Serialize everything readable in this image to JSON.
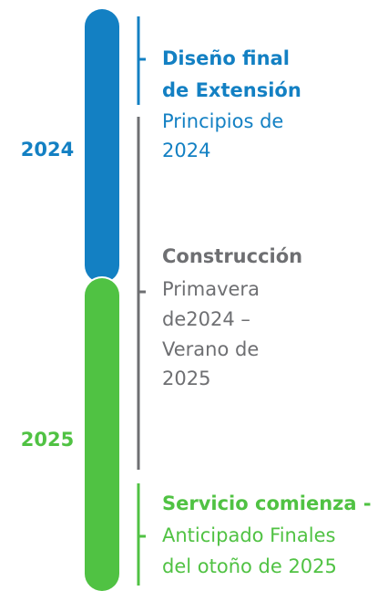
{
  "years": [
    "2024",
    "2025"
  ],
  "events": [
    {
      "title": [
        "Diseño final",
        "de Extensión"
      ],
      "lines": [
        "Principios de",
        "2024"
      ]
    },
    {
      "title": [
        "Construcción"
      ],
      "lines": [
        "Primavera",
        "de2024 –",
        "Verano de",
        "2025"
      ]
    },
    {
      "title": [
        "Servicio comienza -"
      ],
      "lines": [
        "Anticipado Finales",
        "del otoño de 2025"
      ]
    }
  ]
}
